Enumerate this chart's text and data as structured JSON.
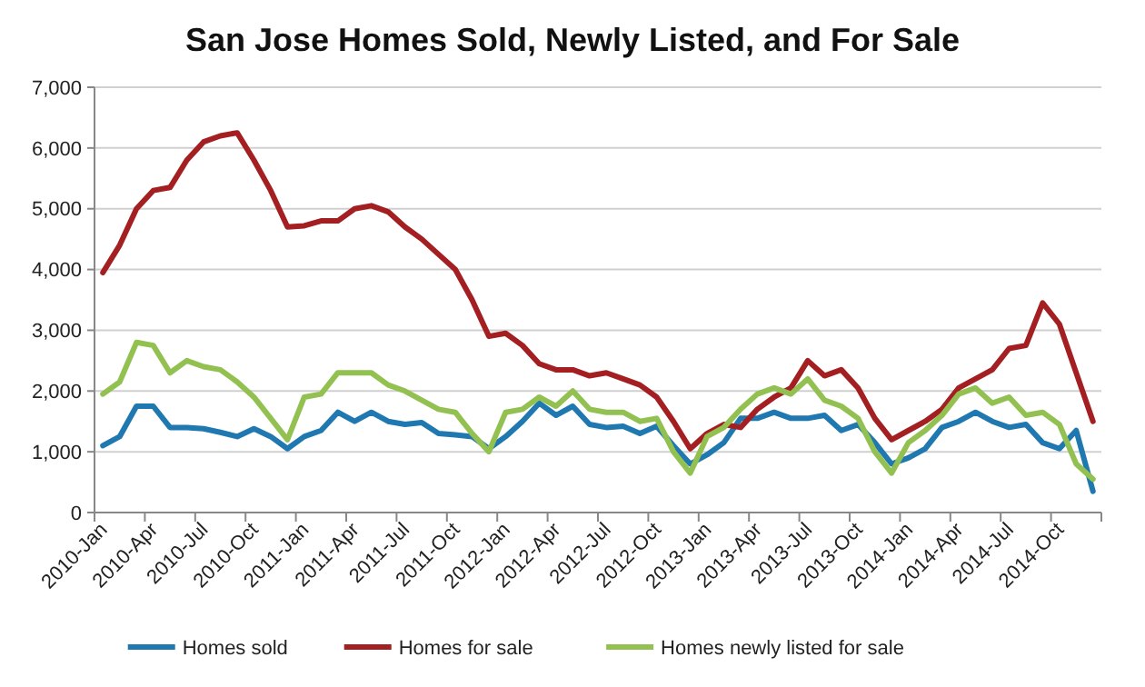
{
  "chart_data": {
    "type": "line",
    "title": "San Jose Homes Sold, Newly Listed, and For Sale",
    "categories": [
      "2010-Jan",
      null,
      null,
      "2010-Apr",
      null,
      null,
      "2010-Jul",
      null,
      null,
      "2010-Oct",
      null,
      null,
      "2011-Jan",
      null,
      null,
      "2011-Apr",
      null,
      null,
      "2011-Jul",
      null,
      null,
      "2011-Oct",
      null,
      null,
      "2012-Jan",
      null,
      null,
      "2012-Apr",
      null,
      null,
      "2012-Jul",
      null,
      null,
      "2012-Oct",
      null,
      null,
      "2013-Jan",
      null,
      null,
      "2013-Apr",
      null,
      null,
      "2013-Jul",
      null,
      null,
      "2013-Oct",
      null,
      null,
      "2014-Jan",
      null,
      null,
      "2014-Apr",
      null,
      null,
      "2014-Jul",
      null,
      null,
      "2014-Oct",
      null,
      null
    ],
    "series": [
      {
        "name": "Homes sold",
        "color": "#1f78b0",
        "values": [
          1100,
          1250,
          1750,
          1750,
          1400,
          1400,
          1380,
          1320,
          1250,
          1380,
          1250,
          1050,
          1250,
          1350,
          1650,
          1500,
          1650,
          1500,
          1450,
          1480,
          1300,
          1280,
          1250,
          1050,
          1250,
          1500,
          1800,
          1600,
          1750,
          1450,
          1400,
          1420,
          1300,
          1420,
          1100,
          800,
          950,
          1150,
          1550,
          1550,
          1650,
          1550,
          1550,
          1600,
          1350,
          1450,
          1150,
          800,
          900,
          1050,
          1400,
          1500,
          1650,
          1500,
          1400,
          1450,
          1150,
          1050,
          1350,
          350
        ]
      },
      {
        "name": "Homes for sale",
        "color": "#a31f22",
        "values": [
          3950,
          4400,
          5000,
          5300,
          5350,
          5800,
          6100,
          6200,
          6250,
          5800,
          5300,
          4700,
          4720,
          4800,
          4800,
          5000,
          5050,
          4950,
          4700,
          4500,
          4250,
          4000,
          3500,
          2900,
          2950,
          2750,
          2450,
          2350,
          2350,
          2250,
          2300,
          2200,
          2100,
          1900,
          1500,
          1050,
          1300,
          1450,
          1400,
          1700,
          1900,
          2050,
          2500,
          2250,
          2350,
          2050,
          1550,
          1200,
          1350,
          1500,
          1700,
          2050,
          2200,
          2350,
          2700,
          2750,
          3450,
          3100,
          2300,
          1500
        ]
      },
      {
        "name": "Homes newly listed for sale",
        "color": "#93c151",
        "values": [
          1950,
          2150,
          2800,
          2750,
          2300,
          2500,
          2400,
          2350,
          2150,
          1900,
          1550,
          1200,
          1900,
          1950,
          2300,
          2300,
          2300,
          2100,
          2000,
          1850,
          1700,
          1650,
          1300,
          1000,
          1650,
          1700,
          1900,
          1750,
          2000,
          1700,
          1650,
          1650,
          1500,
          1550,
          1000,
          650,
          1250,
          1400,
          1700,
          1950,
          2050,
          1950,
          2200,
          1850,
          1750,
          1550,
          1000,
          650,
          1150,
          1350,
          1600,
          1950,
          2050,
          1800,
          1900,
          1600,
          1650,
          1450,
          800,
          550
        ]
      }
    ],
    "ylim": [
      0,
      7000
    ],
    "yticks": [
      {
        "value": 0,
        "label": "0"
      },
      {
        "value": 1000,
        "label": "1,000"
      },
      {
        "value": 2000,
        "label": "2,000"
      },
      {
        "value": 3000,
        "label": "3,000"
      },
      {
        "value": 4000,
        "label": "4,000"
      },
      {
        "value": 5000,
        "label": "5,000"
      },
      {
        "value": 6000,
        "label": "6,000"
      },
      {
        "value": 7000,
        "label": "7,000"
      }
    ],
    "grid": "y",
    "legend": "bottom",
    "marker": "none",
    "line_style": "solid"
  }
}
